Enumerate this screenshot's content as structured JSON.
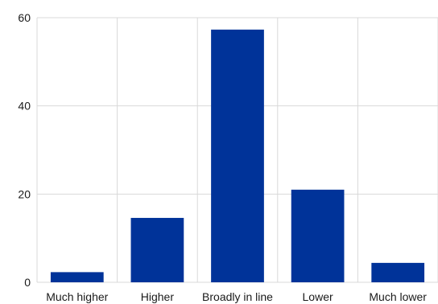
{
  "chart_data": {
    "type": "bar",
    "title": "",
    "xlabel": "",
    "ylabel": "",
    "categories": [
      "Much higher",
      "Higher",
      "Broadly in line",
      "Lower",
      "Much lower"
    ],
    "values": [
      2.3,
      14.6,
      57.3,
      21.0,
      4.4
    ],
    "ylim": [
      0,
      60
    ],
    "yticks": [
      0,
      20,
      40,
      60
    ],
    "grid": {
      "horizontal": true,
      "vertical": true
    },
    "legend": "none",
    "bar_color": "#003399",
    "grid_color": "#d9d9d9"
  }
}
